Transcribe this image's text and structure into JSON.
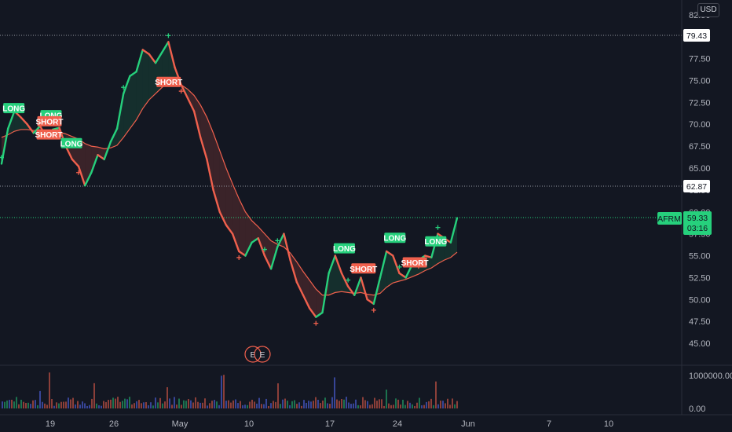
{
  "currency_button": "USD",
  "price_axis": {
    "ticks": [
      "82.50",
      "80.00",
      "77.50",
      "75.00",
      "72.50",
      "70.00",
      "67.50",
      "65.00",
      "62.50",
      "60.00",
      "57.50",
      "55.00",
      "52.50",
      "50.00",
      "47.50",
      "45.00"
    ],
    "tick_values": [
      82.5,
      80,
      77.5,
      75,
      72.5,
      70,
      67.5,
      65,
      62.5,
      60,
      57.5,
      55,
      52.5,
      50,
      47.5,
      45
    ],
    "range": [
      44.2,
      83.2
    ]
  },
  "volume_axis": {
    "ticks": [
      "1000000.00",
      "0.00"
    ]
  },
  "date_axis": {
    "labels": [
      "19",
      "26",
      "May",
      "10",
      "17",
      "24",
      "Jun",
      "7",
      "10"
    ]
  },
  "horizontal_levels": [
    {
      "label": "79.43",
      "value": 79.43
    },
    {
      "label": "62.87",
      "value": 62.87
    }
  ],
  "current_price": {
    "symbol": "AFRM",
    "price": "59.33",
    "countdown": "03:16",
    "value": 59.33
  },
  "earnings_markers": [
    "E",
    "E"
  ],
  "signals": [
    {
      "text": "LONG",
      "type": "long"
    },
    {
      "text": "LONG",
      "type": "long"
    },
    {
      "text": "SHORT",
      "type": "short"
    },
    {
      "text": "SHORT",
      "type": "short"
    },
    {
      "text": "LONG",
      "type": "long"
    },
    {
      "text": "SHORT",
      "type": "short"
    },
    {
      "text": "LONG",
      "type": "long"
    },
    {
      "text": "SHORT",
      "type": "short"
    },
    {
      "text": "LONG",
      "type": "long"
    },
    {
      "text": "SHORT",
      "type": "short"
    },
    {
      "text": "LONG",
      "type": "long"
    }
  ],
  "chart_data": {
    "type": "line",
    "symbol": "AFRM",
    "title": "",
    "xlabel": "",
    "ylabel": "",
    "ylim": [
      44.2,
      83.2
    ],
    "grid": false,
    "colors": {
      "up": "#26d07c",
      "down": "#f0604d",
      "ma": "#f0604d",
      "background": "#131722"
    },
    "series": [
      {
        "values": [
          65.5,
          69.5,
          71.5,
          70.8,
          70.0,
          69.0,
          69.8,
          68.5,
          69.4,
          69.6,
          67.5,
          66.0,
          65.2,
          63.0,
          64.5,
          66.5,
          66.0,
          68.0,
          69.5,
          73.5,
          75.5,
          76.0,
          78.5,
          78.0,
          77.0,
          78.2,
          79.4,
          76.5,
          74.5,
          73.0,
          71.5,
          68.5,
          66.0,
          62.5,
          60.0,
          58.5,
          57.5,
          55.5,
          55.0,
          56.5,
          57.0,
          55.0,
          53.5,
          56.0,
          57.5,
          54.5,
          52.0,
          50.5,
          49.0,
          48.0,
          48.5,
          53.0,
          55.0,
          53.0,
          51.5,
          50.5,
          52.5,
          50.0,
          49.5,
          52.5,
          55.5,
          55.0,
          53.0,
          52.5,
          54.0,
          54.5,
          55.0,
          54.8,
          57.5,
          57.0,
          56.5,
          59.3
        ]
      },
      {
        "values": [
          68.5,
          68.8,
          69.2,
          69.4,
          69.4,
          69.3,
          69.3,
          69.2,
          69.2,
          69.1,
          68.9,
          68.6,
          68.3,
          67.8,
          67.5,
          67.4,
          67.2,
          67.3,
          67.6,
          68.5,
          69.5,
          70.5,
          71.8,
          72.8,
          73.5,
          74.2,
          74.8,
          74.8,
          74.5,
          74.0,
          73.3,
          72.2,
          70.8,
          69.0,
          67.0,
          65.0,
          63.2,
          61.5,
          60.0,
          59.0,
          58.3,
          57.5,
          56.7,
          56.3,
          56.0,
          55.3,
          54.3,
          53.2,
          52.2,
          51.2,
          50.5,
          50.5,
          50.8,
          50.9,
          50.8,
          50.7,
          50.8,
          50.6,
          50.5,
          50.7,
          51.4,
          51.9,
          52.1,
          52.3,
          52.6,
          52.9,
          53.3,
          53.6,
          54.1,
          54.5,
          54.8,
          55.4
        ]
      }
    ],
    "signal_prices": [
      71.8,
      71.0,
      70.3,
      68.8,
      67.8,
      74.8,
      55.8,
      53.5,
      57.0,
      54.2,
      56.6
    ]
  }
}
